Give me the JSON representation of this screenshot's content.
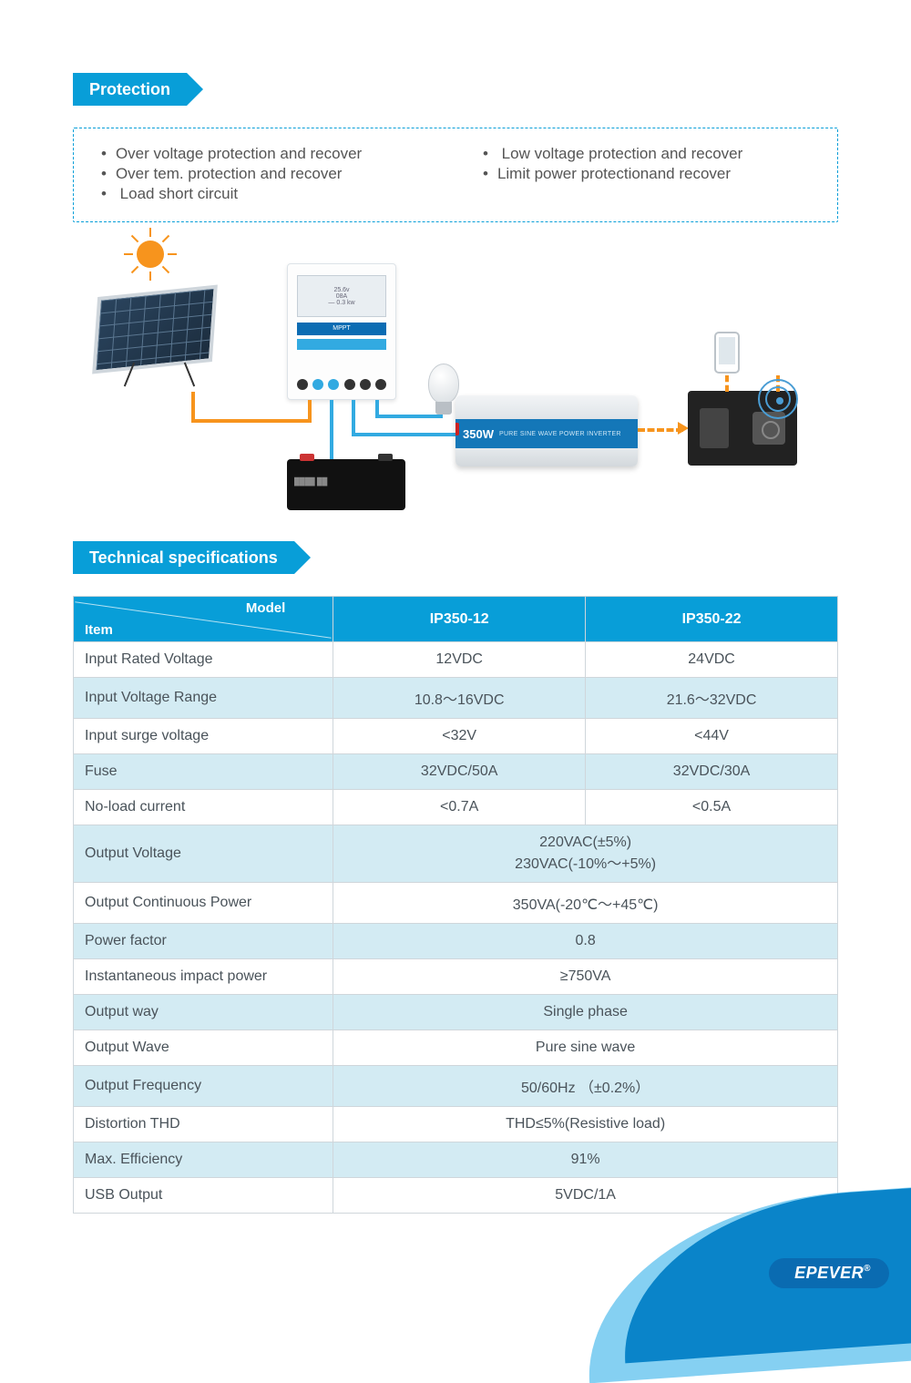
{
  "colors": {
    "primary": "#089ed8",
    "primary_dark": "#0a6bb1",
    "accent_orange": "#f7941d",
    "text": "#4a535a",
    "table_alt_bg": "#d3ebf3",
    "border": "#cfd6db"
  },
  "typography": {
    "header_fontsize": 18,
    "body_fontsize": 16,
    "list_fontsize": 17
  },
  "sections": {
    "protection_title": "Protection",
    "specs_title": "Technical specifications"
  },
  "protection": {
    "left": [
      "Over voltage protection and recover",
      "Over tem. protection and recover",
      " Load short circuit"
    ],
    "right": [
      " Low voltage protection and recover",
      "Limit power protectionand recover"
    ]
  },
  "diagram": {
    "mppt_strip": "MPPT",
    "mppt_lcd_l1": "25.6v",
    "mppt_lcd_l2": "08A",
    "mppt_lcd_l3": "— 0.3 kw",
    "inverter_watt": "350W",
    "inverter_text": "PURE SINE WAVE POWER INVERTER"
  },
  "spec_table": {
    "corner_model": "Model",
    "corner_item": "Item",
    "models": [
      "IP350-12",
      "IP350-22"
    ],
    "rows": [
      {
        "alt": false,
        "label": "Input Rated Voltage",
        "cells": [
          "12VDC",
          "24VDC"
        ],
        "span": 1
      },
      {
        "alt": true,
        "label": "Input Voltage Range",
        "cells": [
          "10.8～16VDC",
          "21.6～32VDC"
        ],
        "span": 1
      },
      {
        "alt": false,
        "label": "Input surge voltage",
        "cells": [
          "<32V",
          "<44V"
        ],
        "span": 1
      },
      {
        "alt": true,
        "label": "Fuse",
        "cells": [
          "32VDC/50A",
          "32VDC/30A"
        ],
        "span": 1
      },
      {
        "alt": false,
        "label": "No-load current",
        "cells": [
          "<0.7A",
          "<0.5A"
        ],
        "span": 1
      },
      {
        "alt": true,
        "label": "Output Voltage",
        "cells": [
          "220VAC(±5%)\n230VAC(-10%～+5%)"
        ],
        "span": 2
      },
      {
        "alt": false,
        "label": "Output Continuous Power",
        "cells": [
          "350VA(-20℃～+45℃)"
        ],
        "span": 2
      },
      {
        "alt": true,
        "label": "Power factor",
        "cells": [
          "0.8"
        ],
        "span": 2
      },
      {
        "alt": false,
        "label": "Instantaneous impact power",
        "cells": [
          "≥750VA"
        ],
        "span": 2
      },
      {
        "alt": true,
        "label": "Output way",
        "cells": [
          "Single phase"
        ],
        "span": 2
      },
      {
        "alt": false,
        "label": "Output Wave",
        "cells": [
          "Pure sine wave"
        ],
        "span": 2
      },
      {
        "alt": true,
        "label": "Output Frequency",
        "cells": [
          "50/60Hz （±0.2%）"
        ],
        "span": 2
      },
      {
        "alt": false,
        "label": "Distortion THD",
        "cells": [
          "THD≤5%(Resistive load)"
        ],
        "span": 2
      },
      {
        "alt": true,
        "label": "Max. Efficiency",
        "cells": [
          "91%"
        ],
        "span": 2
      },
      {
        "alt": false,
        "label": "USB Output",
        "cells": [
          "5VDC/1A"
        ],
        "span": 2
      }
    ],
    "col_widths_pct": [
      34,
      33,
      33
    ]
  },
  "brand": "EPEVER"
}
